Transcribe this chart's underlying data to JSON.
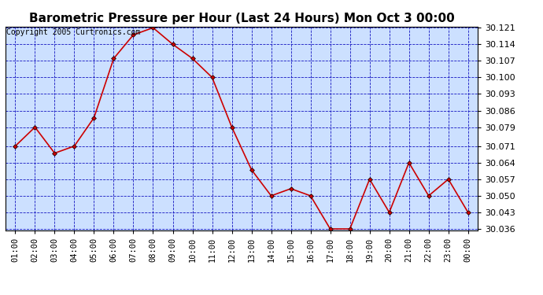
{
  "title": "Barometric Pressure per Hour (Last 24 Hours) Mon Oct 3 00:00",
  "copyright": "Copyright 2005 Curtronics.com",
  "x_labels": [
    "01:00",
    "02:00",
    "03:00",
    "04:00",
    "05:00",
    "06:00",
    "07:00",
    "08:00",
    "09:00",
    "10:00",
    "11:00",
    "12:00",
    "13:00",
    "14:00",
    "15:00",
    "16:00",
    "17:00",
    "18:00",
    "19:00",
    "20:00",
    "21:00",
    "22:00",
    "23:00",
    "00:00"
  ],
  "y_values": [
    30.071,
    30.079,
    30.068,
    30.071,
    30.083,
    30.108,
    30.118,
    30.121,
    30.114,
    30.108,
    30.1,
    30.079,
    30.061,
    30.05,
    30.053,
    30.05,
    30.036,
    30.036,
    30.057,
    30.043,
    30.064,
    30.05,
    30.057,
    30.043
  ],
  "ylim_min": 30.036,
  "ylim_max": 30.121,
  "y_ticks": [
    30.036,
    30.043,
    30.05,
    30.057,
    30.064,
    30.071,
    30.079,
    30.086,
    30.093,
    30.1,
    30.107,
    30.114,
    30.121
  ],
  "line_color": "#cc0000",
  "marker_color": "#cc0000",
  "fig_bg_color": "#ffffff",
  "plot_bg_color": "#cce0ff",
  "grid_color": "#0000bb",
  "title_color": "#000000",
  "title_fontsize": 11,
  "copyright_fontsize": 7,
  "tick_fontsize": 7.5,
  "y_tick_fontsize": 8
}
